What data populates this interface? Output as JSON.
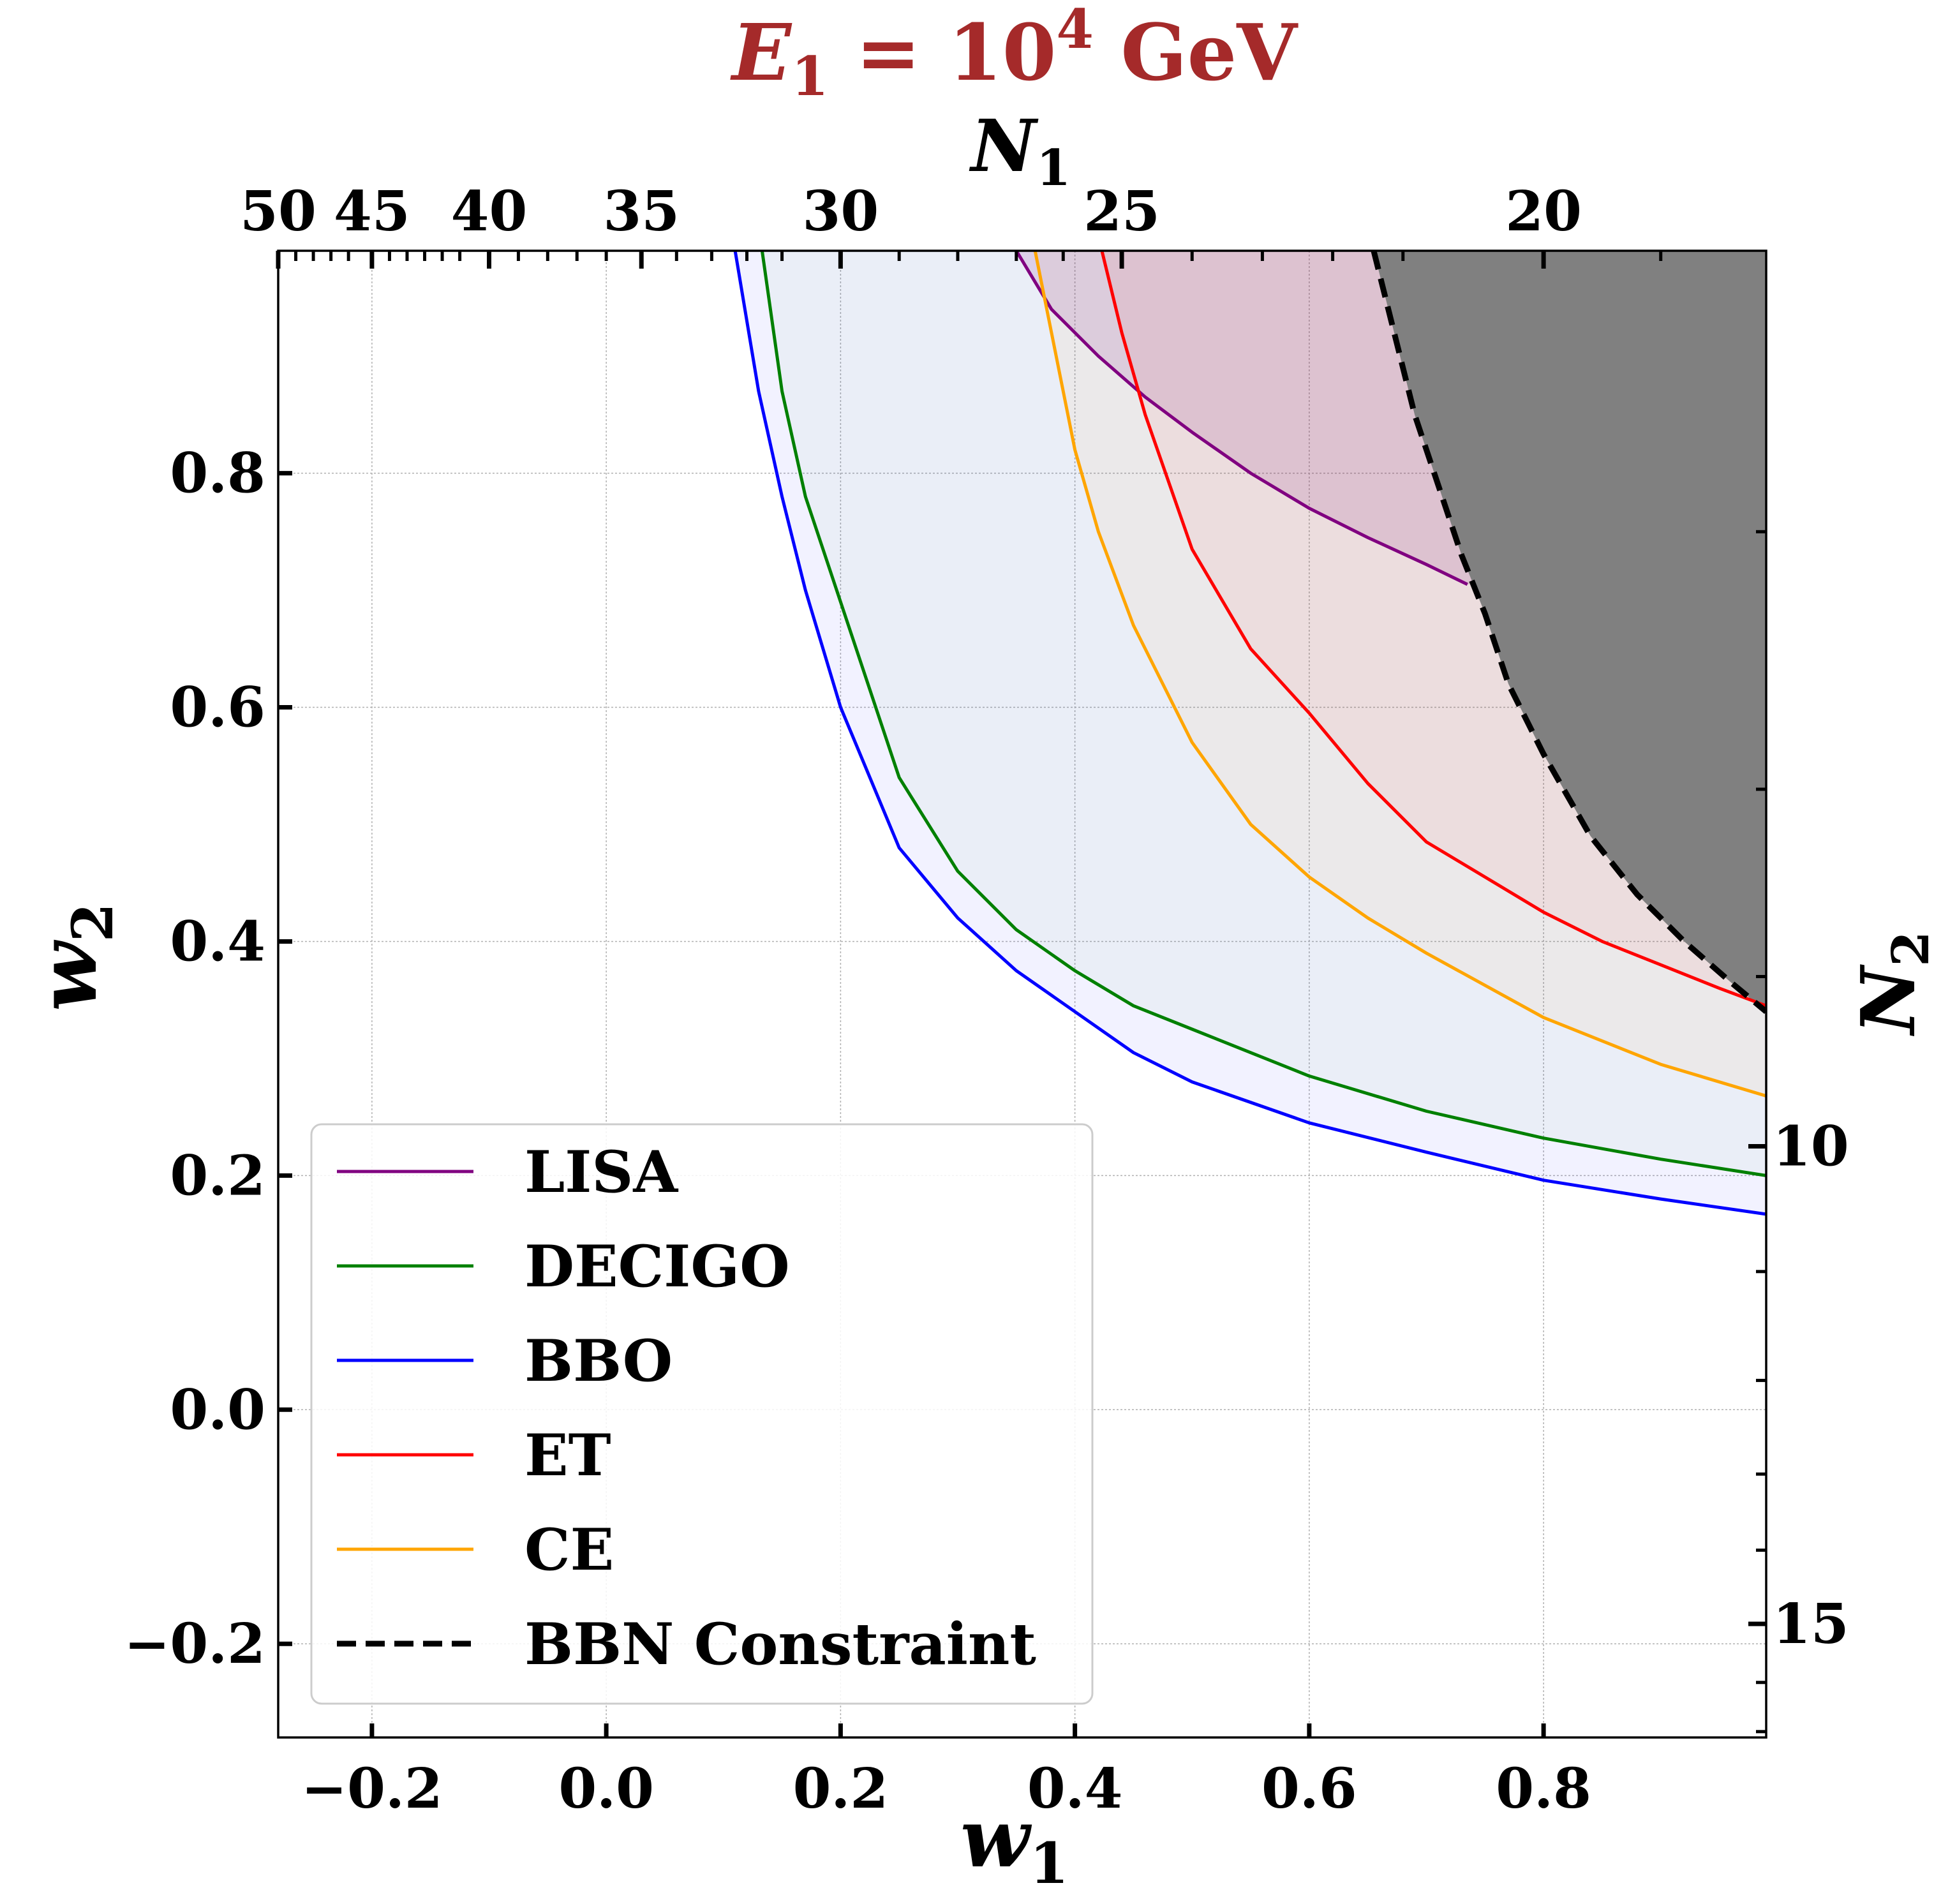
{
  "chart_data": {
    "type": "line",
    "title": {
      "prefix": "E",
      "subscript": "1",
      "middle": " = 10",
      "superscript": "4",
      "suffix": " GeV"
    },
    "title_color": "#a52a2a",
    "xlabel": {
      "main": "w",
      "sub": "1"
    },
    "ylabel": {
      "main": "w",
      "sub": "2"
    },
    "top_label": {
      "main": "N",
      "sub": "1"
    },
    "right_label": {
      "main": "N",
      "sub": "2"
    },
    "xlim": [
      -0.28,
      0.99
    ],
    "ylim": [
      -0.28,
      0.99
    ],
    "x_ticks": [
      -0.2,
      0.0,
      0.2,
      0.4,
      0.6,
      0.8
    ],
    "x_tick_labels": [
      "−0.2",
      "0.0",
      "0.2",
      "0.4",
      "0.6",
      "0.8"
    ],
    "y_ticks": [
      -0.2,
      0.0,
      0.2,
      0.4,
      0.6,
      0.8
    ],
    "y_tick_labels": [
      "−0.2",
      "0.0",
      "0.2",
      "0.4",
      "0.6",
      "0.8"
    ],
    "top_ticks": [
      {
        "w": -0.28,
        "label": "50"
      },
      {
        "w": -0.2,
        "label": "45"
      },
      {
        "w": -0.1,
        "label": "40"
      },
      {
        "w": 0.03,
        "label": "35"
      },
      {
        "w": 0.2,
        "label": "30"
      },
      {
        "w": 0.44,
        "label": "25"
      },
      {
        "w": 0.8,
        "label": "20"
      }
    ],
    "top_minor_ticks": [
      -0.265,
      -0.25,
      -0.235,
      -0.22,
      -0.185,
      -0.17,
      -0.155,
      -0.14,
      -0.125,
      -0.075,
      -0.05,
      -0.025,
      0.0,
      0.06,
      0.09,
      0.12,
      0.15,
      0.25,
      0.3,
      0.35,
      0.39,
      0.5,
      0.56,
      0.62,
      0.68,
      0.9
    ],
    "right_ticks": [
      {
        "w": 0.225,
        "label": "10"
      },
      {
        "w": -0.183,
        "label": "15"
      }
    ],
    "right_minor_ticks": [
      0.75,
      0.53,
      0.37,
      0.118,
      0.025,
      -0.055,
      -0.12,
      -0.233,
      -0.275
    ],
    "series": [
      {
        "name": "LISA",
        "color": "#800080",
        "fill": "#800080",
        "fill_opacity": 0.13,
        "x": [
          0.35,
          0.38,
          0.42,
          0.46,
          0.5,
          0.55,
          0.6,
          0.65,
          0.7,
          0.735
        ],
        "y": [
          0.99,
          0.94,
          0.9,
          0.865,
          0.835,
          0.8,
          0.77,
          0.745,
          0.722,
          0.705
        ]
      },
      {
        "name": "DECIGO",
        "color": "#008000",
        "fill": "#008000",
        "fill_opacity": 0.03,
        "x": [
          0.133,
          0.15,
          0.17,
          0.2,
          0.25,
          0.3,
          0.35,
          0.4,
          0.45,
          0.5,
          0.6,
          0.7,
          0.8,
          0.9,
          0.99
        ],
        "y": [
          0.99,
          0.87,
          0.78,
          0.69,
          0.54,
          0.46,
          0.41,
          0.375,
          0.345,
          0.325,
          0.285,
          0.255,
          0.232,
          0.214,
          0.2
        ]
      },
      {
        "name": "BBO",
        "color": "#0000ff",
        "fill": "#0000ff",
        "fill_opacity": 0.05,
        "x": [
          0.11,
          0.13,
          0.15,
          0.17,
          0.2,
          0.25,
          0.3,
          0.35,
          0.4,
          0.45,
          0.5,
          0.6,
          0.7,
          0.8,
          0.9,
          0.99
        ],
        "y": [
          0.99,
          0.87,
          0.78,
          0.7,
          0.6,
          0.48,
          0.42,
          0.375,
          0.34,
          0.305,
          0.28,
          0.245,
          0.22,
          0.196,
          0.18,
          0.167
        ]
      },
      {
        "name": "ET",
        "color": "#ff0000",
        "fill": "#ff0000",
        "fill_opacity": 0.05,
        "x": [
          0.423,
          0.44,
          0.46,
          0.5,
          0.55,
          0.6,
          0.65,
          0.7,
          0.75,
          0.8,
          0.85,
          0.9,
          0.95,
          0.99
        ],
        "y": [
          0.99,
          0.92,
          0.85,
          0.735,
          0.65,
          0.595,
          0.535,
          0.485,
          0.455,
          0.425,
          0.4,
          0.38,
          0.36,
          0.345
        ]
      },
      {
        "name": "CE",
        "color": "#ffa500",
        "fill": "#ffa500",
        "fill_opacity": 0.05,
        "x": [
          0.366,
          0.38,
          0.4,
          0.42,
          0.45,
          0.5,
          0.55,
          0.6,
          0.65,
          0.7,
          0.8,
          0.9,
          0.99
        ],
        "y": [
          0.99,
          0.92,
          0.82,
          0.75,
          0.67,
          0.57,
          0.5,
          0.455,
          0.42,
          0.39,
          0.335,
          0.295,
          0.268
        ]
      },
      {
        "name": "BBN Constraint",
        "color": "#000000",
        "dashed": true,
        "x": [
          0.655,
          0.67,
          0.69,
          0.71,
          0.73,
          0.75,
          0.77,
          0.8,
          0.84,
          0.88,
          0.92,
          0.96,
          0.99
        ],
        "y": [
          0.99,
          0.93,
          0.85,
          0.79,
          0.73,
          0.68,
          0.62,
          0.56,
          0.49,
          0.44,
          0.4,
          0.365,
          0.34
        ]
      }
    ],
    "excluded_region_color": "#808080",
    "legend_location": "lower-left",
    "grid": true
  }
}
